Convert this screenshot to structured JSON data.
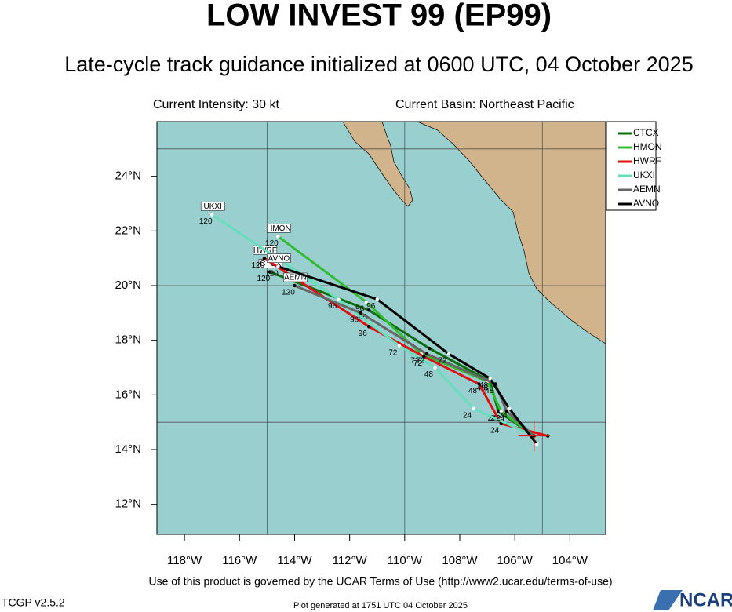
{
  "header": {
    "title": "LOW INVEST 99 (EP99)",
    "subtitle": "Late-cycle track guidance initialized at 0600 UTC, 04 October 2025",
    "intensity": "Current Intensity: 30 kt",
    "basin": "Current Basin: Northeast Pacific"
  },
  "map": {
    "xlim": [
      -119,
      -102.7
    ],
    "ylim": [
      10.9,
      26
    ],
    "xticks": [
      {
        "value": -118,
        "label": "118°W"
      },
      {
        "value": -116,
        "label": "116°W"
      },
      {
        "value": -114,
        "label": "114°W"
      },
      {
        "value": -112,
        "label": "112°W"
      },
      {
        "value": -110,
        "label": "110°W"
      },
      {
        "value": -108,
        "label": "108°W"
      },
      {
        "value": -106,
        "label": "106°W"
      },
      {
        "value": -104,
        "label": "104°W"
      }
    ],
    "yticks": [
      {
        "value": 12,
        "label": "12°N"
      },
      {
        "value": 14,
        "label": "14°N"
      },
      {
        "value": 16,
        "label": "16°N"
      },
      {
        "value": 18,
        "label": "18°N"
      },
      {
        "value": 20,
        "label": "20°N"
      },
      {
        "value": 22,
        "label": "22°N"
      },
      {
        "value": 24,
        "label": "24°N"
      }
    ],
    "grid_lon": [
      -115,
      -110,
      -105
    ],
    "grid_lat": [
      15,
      20,
      25
    ],
    "hours": [
      0,
      24,
      48,
      72,
      96,
      120
    ],
    "series": [
      {
        "name": "CTCX",
        "color": "#0b6e0b",
        "lon": [
          -105.3,
          -106.6,
          -106.9,
          -109.1,
          -111.3,
          -114.9
        ],
        "lat": [
          14.5,
          15.4,
          16.5,
          17.7,
          19.1,
          20.5
        ]
      },
      {
        "name": "HMON",
        "color": "#33bb33",
        "lon": [
          -105.3,
          -106.5,
          -107.0,
          -109.4,
          -111.4,
          -114.6
        ],
        "lat": [
          14.5,
          15.4,
          16.5,
          17.5,
          19.4,
          21.8
        ]
      },
      {
        "name": "HWRF",
        "color": "#dd1111",
        "lon": [
          -104.8,
          -106.5,
          -107.3,
          -109.3,
          -111.3,
          -115.1
        ],
        "lat": [
          14.5,
          14.95,
          16.4,
          17.4,
          18.5,
          21.0
        ]
      },
      {
        "name": "UKXI",
        "color": "#66ddbb",
        "lon": [
          -105.3,
          -107.5,
          -108.9,
          -110.2,
          -112.4,
          -117.0
        ],
        "lat": [
          14.5,
          15.5,
          17.0,
          17.8,
          19.5,
          22.6
        ]
      },
      {
        "name": "AEMN",
        "color": "#666666",
        "lon": [
          -105.3,
          -106.3,
          -106.7,
          -109.2,
          -111.6,
          -114.0
        ],
        "lat": [
          14.5,
          15.4,
          16.4,
          17.5,
          19.0,
          20.0
        ]
      },
      {
        "name": "AVNO",
        "color": "#000000",
        "lon": [
          -105.2,
          -106.2,
          -106.9,
          -108.4,
          -111.0,
          -114.6
        ],
        "lat": [
          14.2,
          15.5,
          16.6,
          17.5,
          19.5,
          20.7
        ]
      }
    ]
  },
  "footer": {
    "terms": "Use of this product is governed by the UCAR Terms of Use (http://www2.ucar.edu/terms-of-use)",
    "version": "TCGP v2.5.2",
    "generated": "Plot generated at 1751 UTC   04 October 2025",
    "logo": "NCAR"
  }
}
